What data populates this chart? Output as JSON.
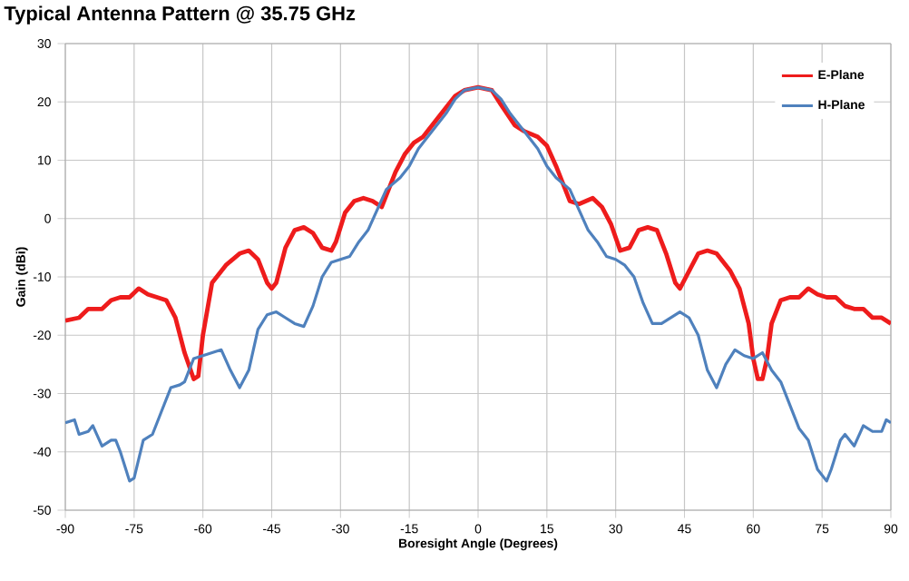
{
  "chart_data": {
    "type": "line",
    "title": "Typical Antenna Pattern @ 35.75 GHz",
    "xlabel": "Boresight Angle (Degrees)",
    "ylabel": "Gain (dBi)",
    "xlim": [
      -90,
      90
    ],
    "xticks": [
      -90,
      -75,
      -60,
      -45,
      -30,
      -15,
      0,
      15,
      30,
      45,
      60,
      75,
      90
    ],
    "ylim": [
      -50,
      30
    ],
    "yticks": [
      -50,
      -40,
      -30,
      -20,
      -10,
      0,
      10,
      20,
      30
    ],
    "grid": true,
    "legend": "top right",
    "marker": "none",
    "line_style": "solid",
    "series": [
      {
        "name": "E-Plane",
        "color": "#ee1c1c",
        "x": [
          -90,
          -87,
          -85,
          -82,
          -80,
          -78,
          -76,
          -74,
          -72,
          -70,
          -68,
          -66,
          -64,
          -62,
          -61,
          -60,
          -58,
          -55,
          -52,
          -50,
          -48,
          -46,
          -45,
          -44,
          -42,
          -40,
          -38,
          -36,
          -34,
          -32,
          -31,
          -29,
          -27,
          -25,
          -23,
          -21,
          -18,
          -16,
          -14,
          -12,
          -10,
          -8,
          -5,
          -3,
          0,
          3,
          5,
          8,
          10,
          13,
          15,
          17,
          20,
          22,
          25,
          27,
          29,
          31,
          33,
          35,
          37,
          39,
          41,
          43,
          44,
          46,
          48,
          50,
          52,
          55,
          57,
          59,
          60,
          61,
          62,
          63,
          64,
          66,
          68,
          70,
          72,
          74,
          76,
          78,
          80,
          82,
          84,
          86,
          88,
          90
        ],
        "values": [
          -17.5,
          -17,
          -15.5,
          -15.5,
          -14,
          -13.5,
          -13.5,
          -12,
          -13,
          -13.5,
          -14,
          -17,
          -23,
          -27.5,
          -27,
          -20,
          -11,
          -8,
          -6,
          -5.5,
          -7,
          -11,
          -12,
          -11,
          -5,
          -2,
          -1.5,
          -2.5,
          -5,
          -5.5,
          -4,
          1,
          3,
          3.5,
          3,
          2,
          8,
          11,
          13,
          14,
          16,
          18,
          21,
          22,
          22.5,
          22,
          19.5,
          16,
          15,
          14,
          12.5,
          9,
          3,
          2.5,
          3.5,
          2,
          -1,
          -5.5,
          -5,
          -2,
          -1.5,
          -2,
          -6,
          -11,
          -12,
          -9,
          -6,
          -5.5,
          -6,
          -9,
          -12,
          -18,
          -24,
          -27.5,
          -27.5,
          -24,
          -18,
          -14,
          -13.5,
          -13.5,
          -12,
          -13,
          -13.5,
          -13.5,
          -15,
          -15.5,
          -15.5,
          -17,
          -17,
          -18
        ]
      },
      {
        "name": "H-Plane",
        "color": "#4f81bd",
        "x": [
          -90,
          -88,
          -87,
          -85,
          -84,
          -82,
          -80,
          -79,
          -78,
          -76,
          -75,
          -73,
          -71,
          -69,
          -67,
          -65,
          -64,
          -62,
          -60,
          -58,
          -56,
          -54,
          -52,
          -50,
          -48,
          -46,
          -44,
          -42,
          -40,
          -38,
          -36,
          -34,
          -32,
          -30,
          -28,
          -26,
          -24,
          -22,
          -20,
          -17,
          -15,
          -13,
          -11,
          -9,
          -7,
          -5,
          -3,
          0,
          3,
          5,
          7,
          9,
          11,
          13,
          15,
          17,
          20,
          22,
          24,
          26,
          28,
          30,
          32,
          34,
          36,
          38,
          40,
          42,
          44,
          46,
          48,
          50,
          52,
          54,
          56,
          58,
          60,
          62,
          64,
          66,
          68,
          70,
          72,
          74,
          76,
          77,
          79,
          80,
          82,
          84,
          86,
          88,
          89,
          90
        ],
        "values": [
          -35,
          -34.5,
          -37,
          -36.5,
          -35.5,
          -39,
          -38,
          -38,
          -40,
          -45,
          -44.5,
          -38,
          -37,
          -33,
          -29,
          -28.5,
          -28,
          -24,
          -23.5,
          -23,
          -22.5,
          -26,
          -29,
          -26,
          -19,
          -16.5,
          -16,
          -17,
          -18,
          -18.5,
          -15,
          -10,
          -7.5,
          -7,
          -6.5,
          -4,
          -2,
          1.5,
          5,
          7,
          9,
          12,
          14,
          16,
          18,
          20.5,
          22,
          22.5,
          22,
          20.5,
          18,
          16,
          14,
          12,
          9,
          7,
          5,
          1.5,
          -2,
          -4,
          -6.5,
          -7,
          -8,
          -10,
          -14.5,
          -18,
          -18,
          -17,
          -16,
          -17,
          -20,
          -26,
          -29,
          -25,
          -22.5,
          -23.5,
          -24,
          -23,
          -26,
          -28,
          -32,
          -36,
          -38,
          -43,
          -45,
          -43,
          -38,
          -37,
          -39,
          -35.5,
          -36.5,
          -36.5,
          -34.5,
          -35
        ]
      }
    ]
  }
}
